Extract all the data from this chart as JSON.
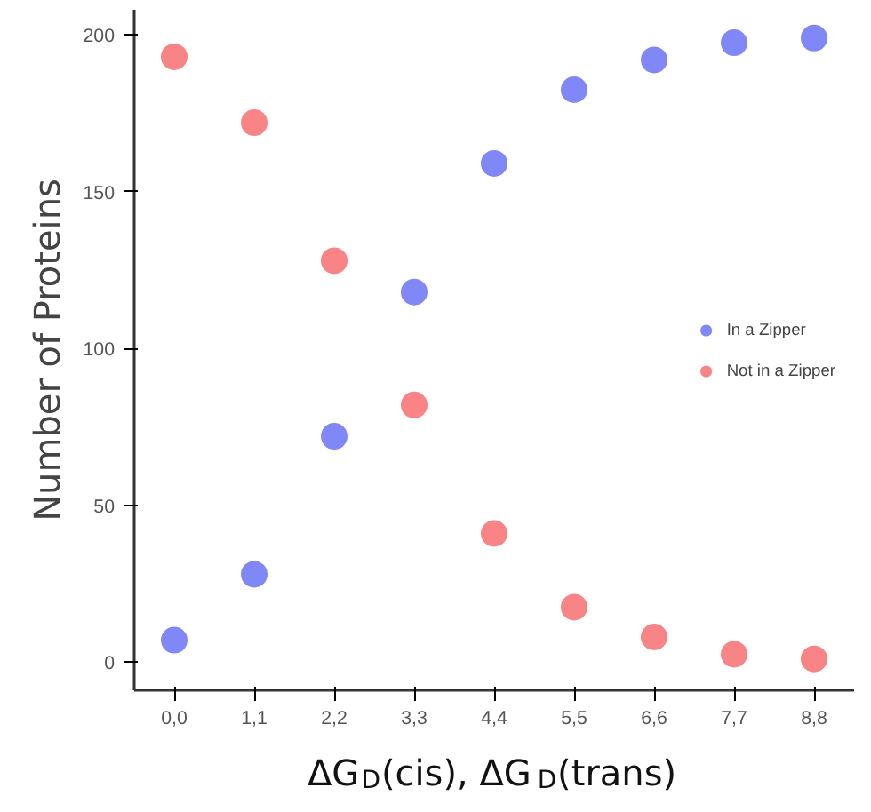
{
  "chart_data": {
    "type": "scatter",
    "xlabel": "ΔG$_{D}$(cis), ΔG$_{D}$(trans)",
    "ylabel": "Number of Proteins",
    "categories": [
      "0,0",
      "1,1",
      "2,2",
      "3,3",
      "4,4",
      "5,5",
      "6,6",
      "7,7",
      "8,8"
    ],
    "ylim": [
      -9,
      208
    ],
    "yticks": [
      0,
      50,
      100,
      150,
      200
    ],
    "grid": false,
    "legend": "right",
    "marker": "circle",
    "series": [
      {
        "name": "In a Zipper",
        "color": "#8088f8",
        "values": [
          7,
          28,
          72,
          118,
          159,
          182.5,
          192,
          197.5,
          199
        ]
      },
      {
        "name": "Not in a Zipper",
        "color": "#f88486",
        "values": [
          193,
          172,
          128,
          82,
          41,
          17.5,
          8,
          2.5,
          1
        ]
      }
    ]
  }
}
